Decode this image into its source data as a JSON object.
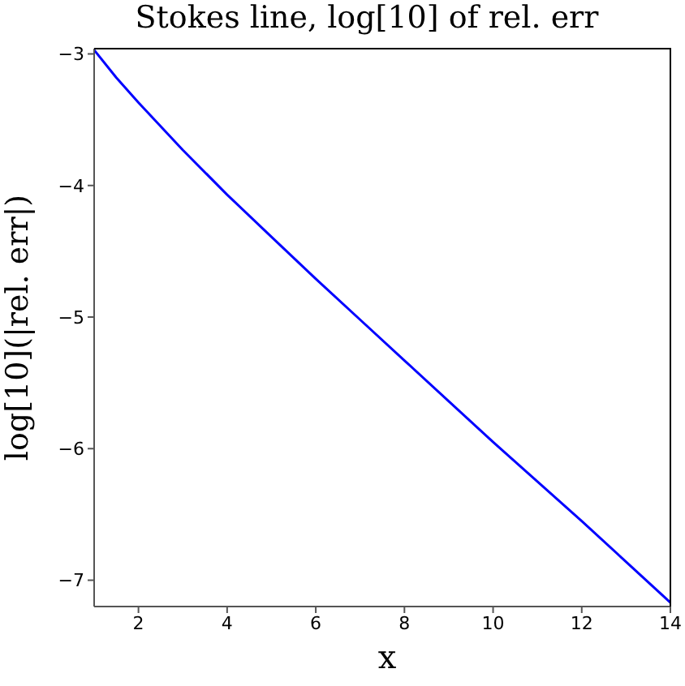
{
  "chart_data": {
    "type": "line",
    "title": "Stokes line, log[10] of rel. err",
    "xlabel": "x",
    "ylabel": "log[10](|rel. err|)",
    "x": [
      1,
      1.5,
      2,
      3,
      4,
      5,
      6,
      7,
      8,
      9,
      10,
      11,
      12,
      13,
      14
    ],
    "series": [
      {
        "color": "#0000ff",
        "values": [
          -2.97,
          -3.18,
          -3.37,
          -3.73,
          -4.07,
          -4.39,
          -4.71,
          -5.02,
          -5.33,
          -5.64,
          -5.95,
          -6.25,
          -6.55,
          -6.86,
          -7.17
        ]
      }
    ],
    "xlim": [
      1,
      14
    ],
    "xticks": [
      2,
      4,
      6,
      8,
      10,
      12,
      14
    ],
    "ylim": [
      -7.2,
      -2.96
    ],
    "yticks": [
      -7,
      -6,
      -5,
      -4,
      -3
    ],
    "marker": "none",
    "line_style": "solid"
  }
}
